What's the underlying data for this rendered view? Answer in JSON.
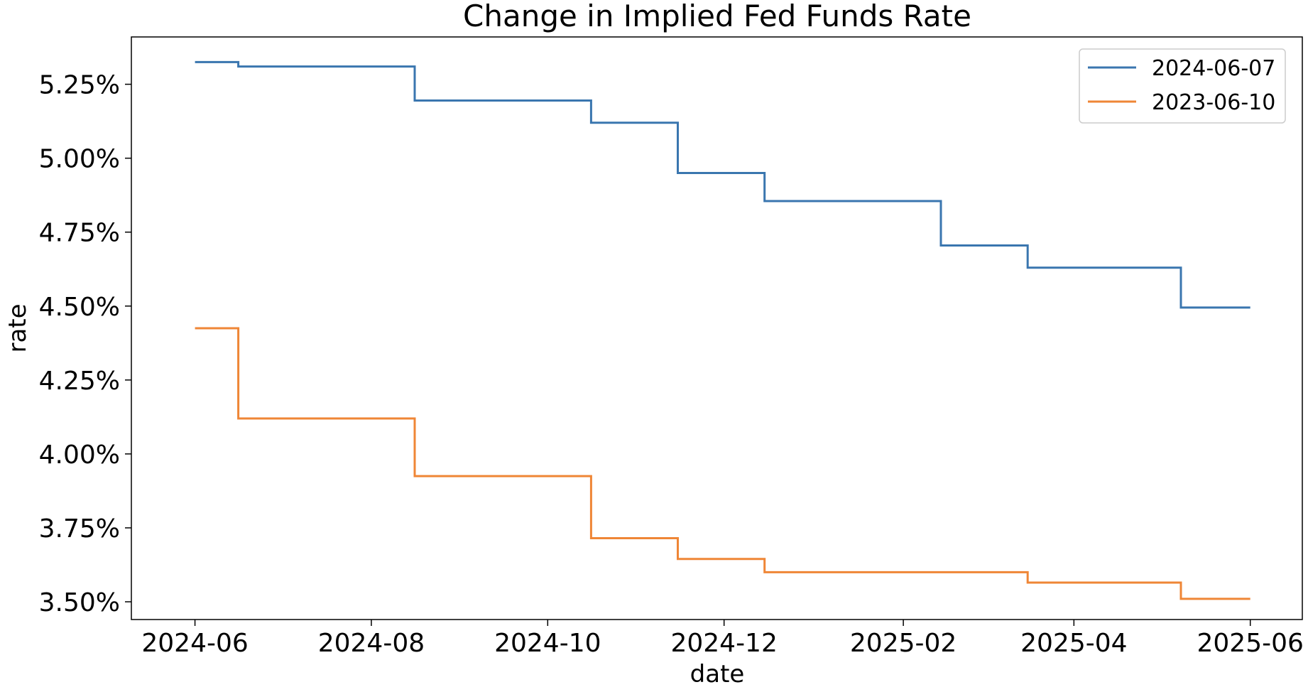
{
  "chart_data": {
    "type": "line",
    "step": "post",
    "title": "Change in Implied Fed Funds Rate",
    "xlabel": "date",
    "ylabel": "rate",
    "ylim": [
      3.44,
      5.41
    ],
    "xlim": [
      "2024-05-10",
      "2025-06-19"
    ],
    "yticks": [
      3.5,
      3.75,
      4.0,
      4.25,
      4.5,
      4.75,
      5.0,
      5.25
    ],
    "ytick_labels": [
      "3.50%",
      "3.75%",
      "4.00%",
      "4.25%",
      "4.50%",
      "4.75%",
      "5.00%",
      "5.25%"
    ],
    "xticks": [
      "2024-06-01",
      "2024-08-01",
      "2024-10-01",
      "2024-12-01",
      "2025-02-01",
      "2025-04-01",
      "2025-06-01"
    ],
    "xtick_labels": [
      "2024-06",
      "2024-08",
      "2024-10",
      "2024-12",
      "2025-02",
      "2025-04",
      "2025-06"
    ],
    "grid": false,
    "legend_position": "top-right",
    "series": [
      {
        "name": "2024-06-07",
        "color": "#3a76af",
        "x": [
          "2024-06-01",
          "2024-06-16",
          "2024-08-16",
          "2024-10-16",
          "2024-11-15",
          "2024-12-15",
          "2025-02-14",
          "2025-03-16",
          "2025-05-08",
          "2025-06-01"
        ],
        "y": [
          5.325,
          5.31,
          5.195,
          5.12,
          4.95,
          4.855,
          4.705,
          4.63,
          4.495,
          4.495
        ]
      },
      {
        "name": "2023-06-10",
        "color": "#ef8636",
        "x": [
          "2024-06-01",
          "2024-06-16",
          "2024-08-16",
          "2024-10-16",
          "2024-11-15",
          "2024-12-15",
          "2025-03-16",
          "2025-05-08",
          "2025-06-01"
        ],
        "y": [
          4.425,
          4.12,
          3.925,
          3.715,
          3.645,
          3.6,
          3.565,
          3.51,
          3.51
        ]
      }
    ]
  }
}
